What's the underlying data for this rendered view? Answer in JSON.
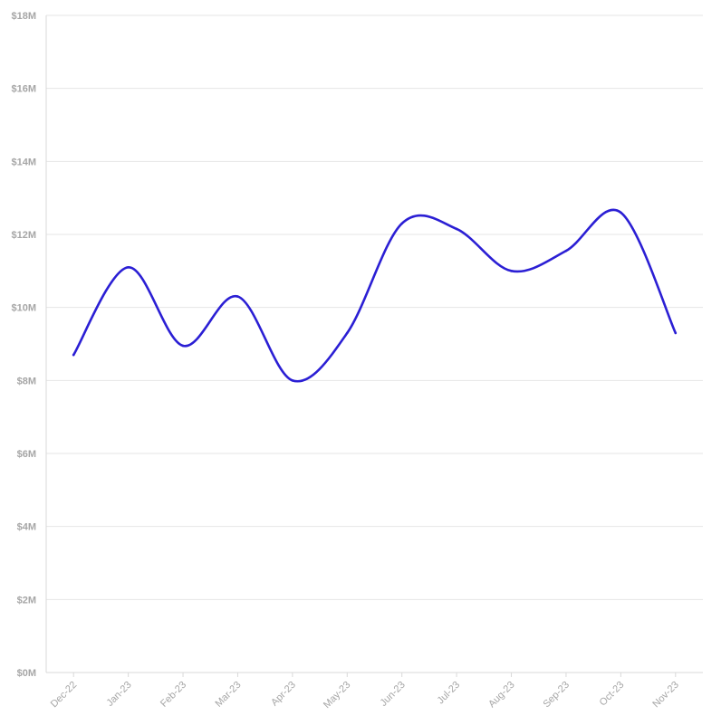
{
  "chart_data": {
    "type": "line",
    "title": "",
    "xlabel": "",
    "ylabel": "",
    "categories": [
      "Dec-22",
      "Jan-23",
      "Feb-23",
      "Mar-23",
      "Apr-23",
      "May-23",
      "Jun-23",
      "Jul-23",
      "Aug-23",
      "Sep-23",
      "Oct-23",
      "Nov-23"
    ],
    "series": [
      {
        "values": [
          8.7,
          11.1,
          8.95,
          10.3,
          8.0,
          9.3,
          12.3,
          12.15,
          11.0,
          11.55,
          12.6,
          9.3
        ],
        "color": "#2b1fd4"
      }
    ],
    "ylim": [
      0,
      18
    ],
    "y_ticks": [
      0,
      2,
      4,
      6,
      8,
      10,
      12,
      14,
      16,
      18
    ],
    "y_tick_labels": [
      "$0M",
      "$2M",
      "$4M",
      "$6M",
      "$8M",
      "$10M",
      "$12M",
      "$14M",
      "$16M",
      "$18M"
    ],
    "grid": true,
    "grid_color": "#e6e6e6",
    "axis_color": "#d9d9d9",
    "label_color": "#a6a6a6",
    "legend": "none"
  }
}
